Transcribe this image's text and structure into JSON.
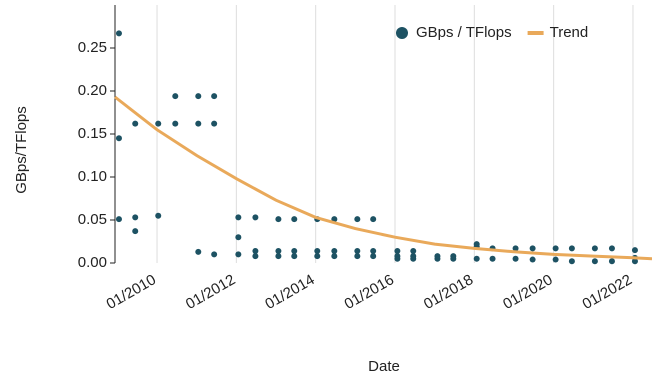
{
  "chart_data": {
    "type": "scatter",
    "xlabel": "Date",
    "ylabel": "GBps/TFlops",
    "xlim": [
      2008.94,
      2022.48
    ],
    "ylim": [
      0,
      0.3
    ],
    "xticks": [
      {
        "value": 2010,
        "label": "01/2010"
      },
      {
        "value": 2012,
        "label": "01/2012"
      },
      {
        "value": 2014,
        "label": "01/2014"
      },
      {
        "value": 2016,
        "label": "01/2016"
      },
      {
        "value": 2018,
        "label": "01/2018"
      },
      {
        "value": 2020,
        "label": "01/2020"
      },
      {
        "value": 2022,
        "label": "01/2022"
      }
    ],
    "yticks": [
      {
        "value": 0,
        "label": "0.00"
      },
      {
        "value": 0.05,
        "label": "0.05"
      },
      {
        "value": 0.1,
        "label": "0.10"
      },
      {
        "value": 0.15,
        "label": "0.15"
      },
      {
        "value": 0.2,
        "label": "0.20"
      },
      {
        "value": 0.25,
        "label": "0.25"
      }
    ],
    "grid": true,
    "legend": "upper right",
    "series": [
      {
        "name": "GBps / TFlops",
        "color": "#1d5263",
        "kind": "points",
        "x": [
          2009.04,
          2009.04,
          2009.04,
          2009.45,
          2009.45,
          2009.45,
          2010.03,
          2010.03,
          2010.46,
          2010.46,
          2011.04,
          2011.04,
          2011.04,
          2011.44,
          2011.44,
          2011.44,
          2012.05,
          2012.05,
          2012.05,
          2012.48,
          2012.48,
          2012.48,
          2013.06,
          2013.06,
          2013.06,
          2013.46,
          2013.46,
          2013.46,
          2014.04,
          2014.04,
          2014.04,
          2014.47,
          2014.47,
          2014.47,
          2015.05,
          2015.05,
          2015.05,
          2015.45,
          2015.45,
          2015.45,
          2016.06,
          2016.06,
          2016.06,
          2016.46,
          2016.46,
          2016.46,
          2017.07,
          2017.07,
          2017.47,
          2017.47,
          2018.06,
          2018.06,
          2018.06,
          2018.46,
          2018.46,
          2019.04,
          2019.04,
          2019.47,
          2019.47,
          2020.05,
          2020.05,
          2020.46,
          2020.46,
          2021.04,
          2021.04,
          2021.47,
          2021.47,
          2022.05,
          2022.05,
          2022.05
        ],
        "values": [
          0.267,
          0.145,
          0.051,
          0.162,
          0.053,
          0.037,
          0.162,
          0.055,
          0.194,
          0.162,
          0.194,
          0.162,
          0.013,
          0.194,
          0.162,
          0.01,
          0.053,
          0.03,
          0.01,
          0.053,
          0.014,
          0.008,
          0.051,
          0.014,
          0.008,
          0.051,
          0.014,
          0.008,
          0.051,
          0.014,
          0.008,
          0.051,
          0.014,
          0.008,
          0.051,
          0.014,
          0.008,
          0.051,
          0.014,
          0.008,
          0.014,
          0.008,
          0.005,
          0.014,
          0.008,
          0.005,
          0.008,
          0.005,
          0.008,
          0.005,
          0.022,
          0.019,
          0.005,
          0.017,
          0.005,
          0.017,
          0.005,
          0.017,
          0.004,
          0.017,
          0.004,
          0.017,
          0.002,
          0.017,
          0.002,
          0.017,
          0.002,
          0.015,
          0.006,
          0.002
        ]
      },
      {
        "name": "Trend",
        "color": "#e9a95a",
        "kind": "line",
        "x": [
          2008.94,
          2010,
          2011,
          2012,
          2013,
          2014,
          2015,
          2016,
          2017,
          2018,
          2019,
          2020,
          2021,
          2022,
          2022.48
        ],
        "values": [
          0.193,
          0.155,
          0.125,
          0.098,
          0.073,
          0.053,
          0.04,
          0.03,
          0.022,
          0.017,
          0.013,
          0.01,
          0.008,
          0.006,
          0.005
        ]
      }
    ]
  }
}
